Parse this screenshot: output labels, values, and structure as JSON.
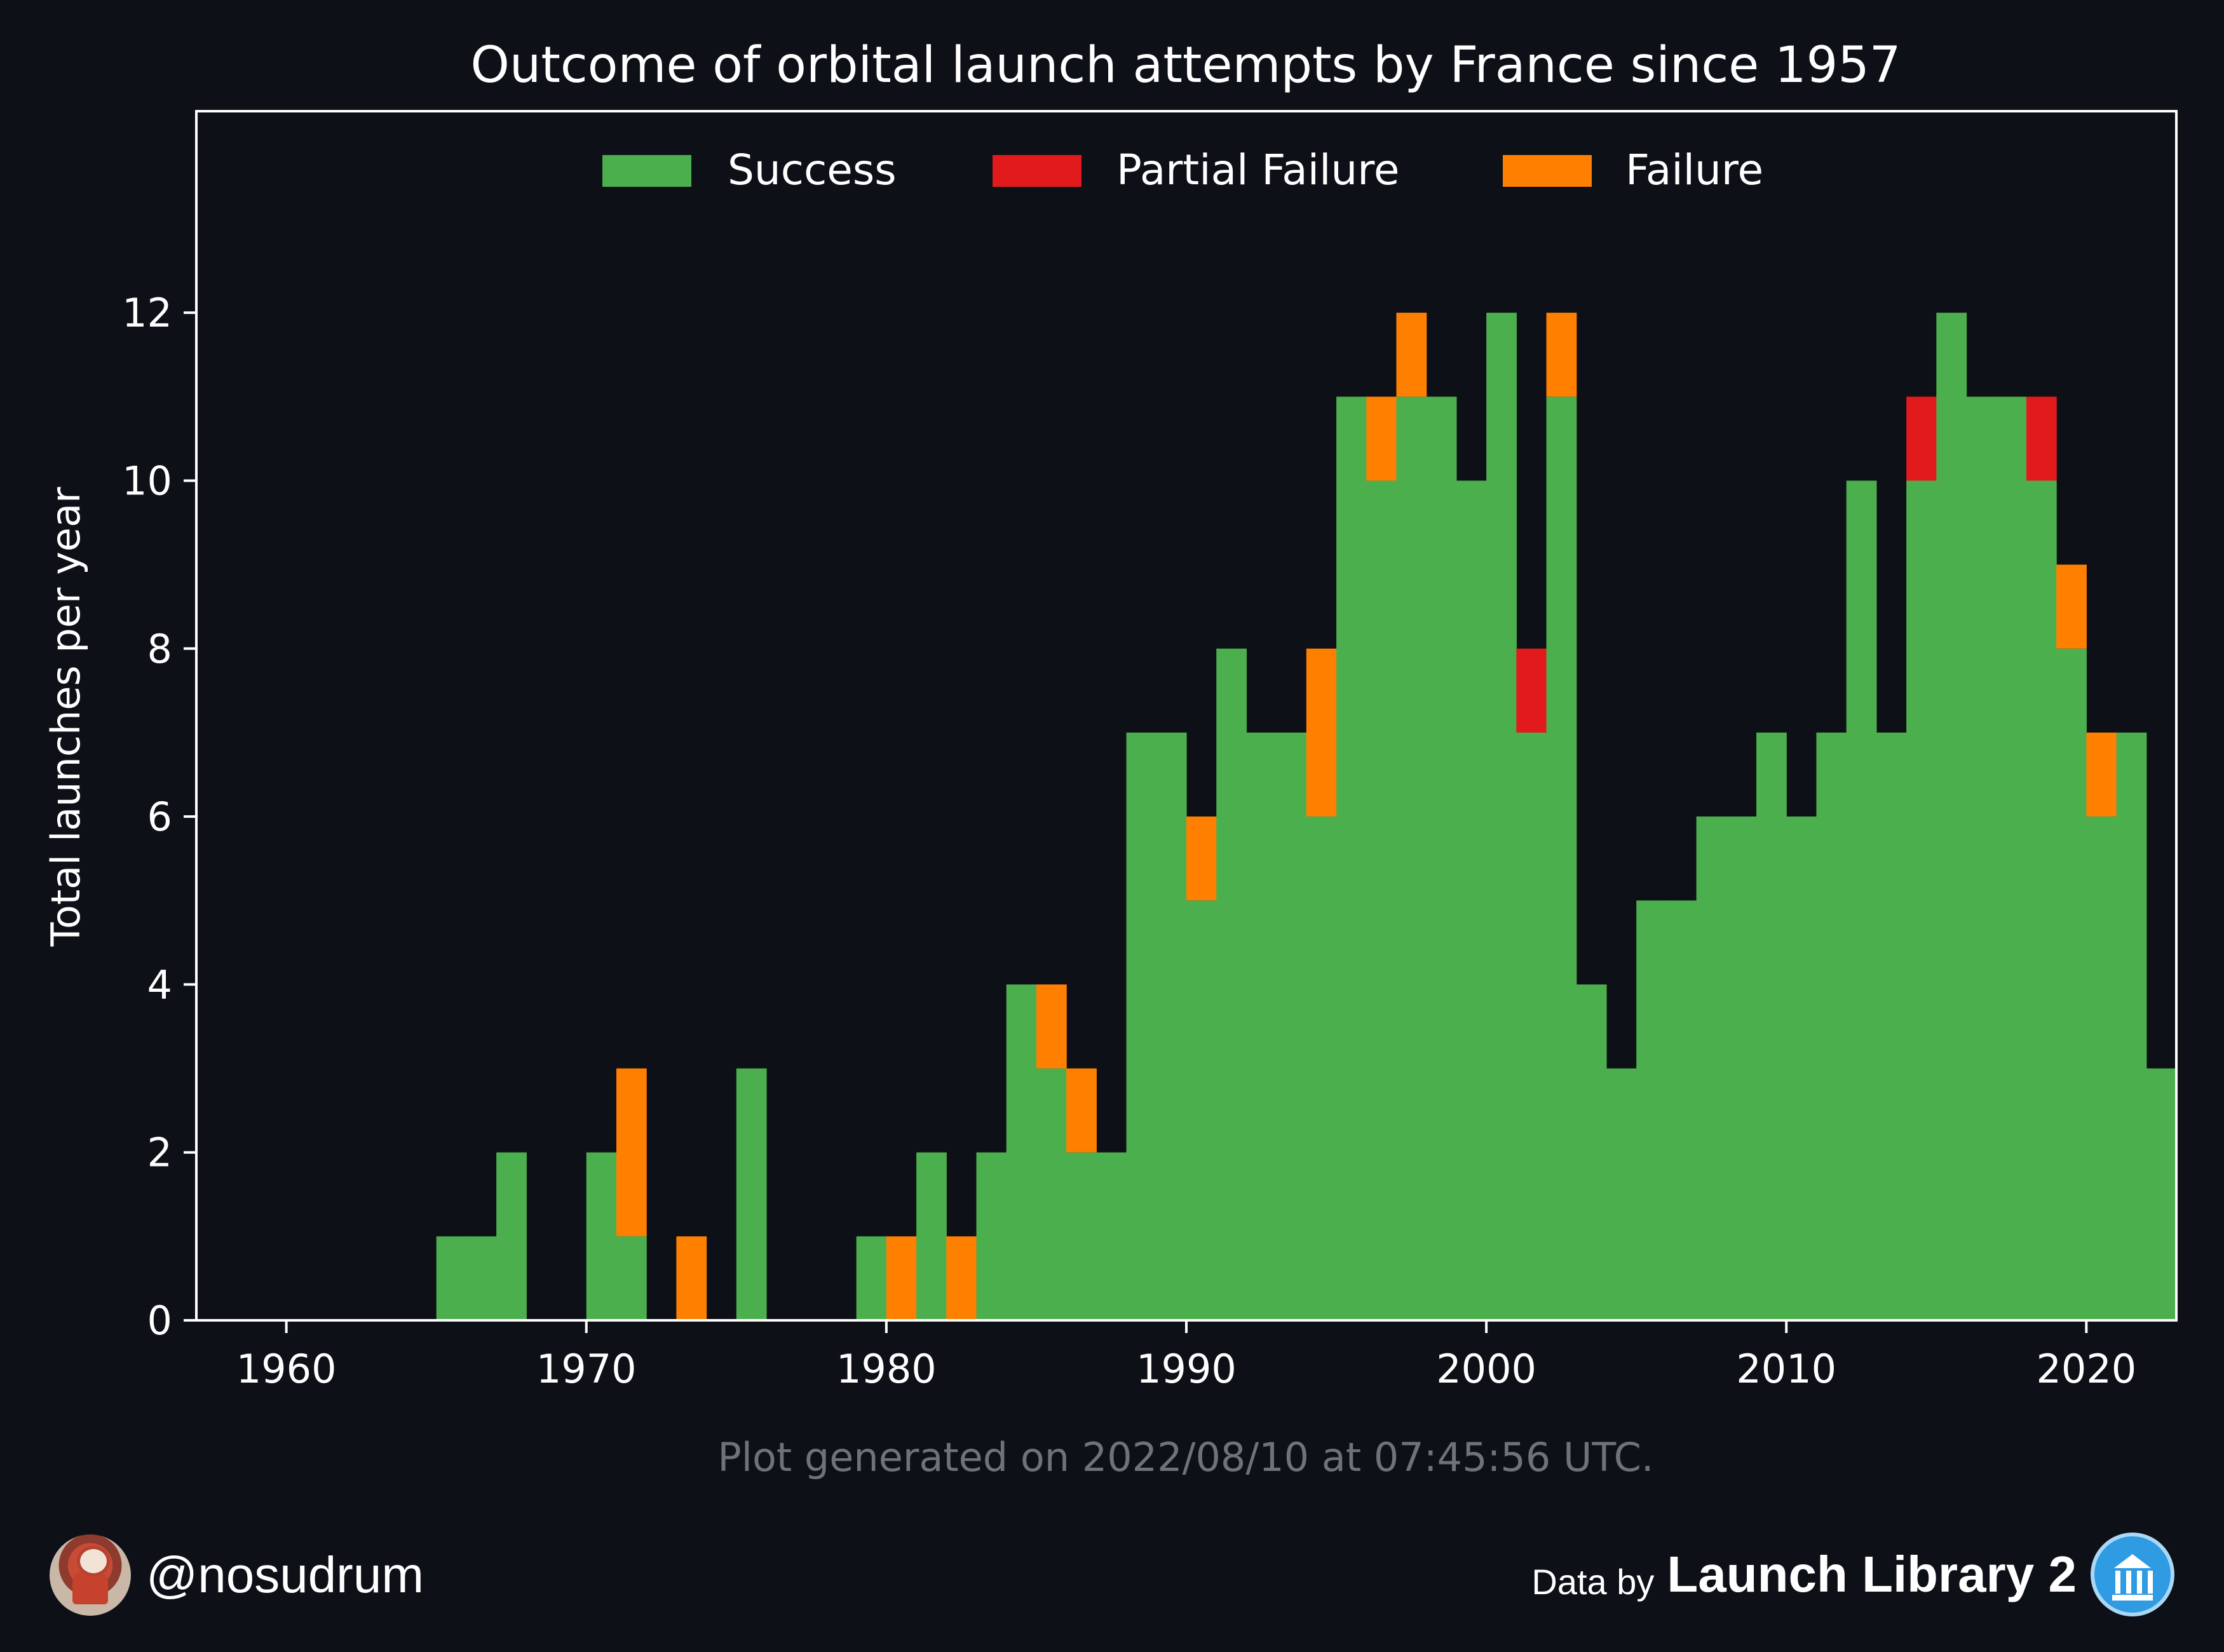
{
  "chart_data": {
    "type": "bar",
    "stacked": true,
    "title": "Outcome of orbital launch attempts by France since 1957",
    "xlabel": "",
    "ylabel": "Total launches per year",
    "xlim": [
      1957,
      2023
    ],
    "ylim": [
      0,
      14.4
    ],
    "x_ticks": [
      1960,
      1970,
      1980,
      1990,
      2000,
      2010,
      2020
    ],
    "y_ticks": [
      0,
      2,
      4,
      6,
      8,
      10,
      12
    ],
    "grid": false,
    "legend_position": "top-center",
    "categories": [
      1965,
      1966,
      1967,
      1970,
      1971,
      1973,
      1975,
      1979,
      1980,
      1981,
      1982,
      1983,
      1984,
      1985,
      1986,
      1987,
      1988,
      1989,
      1990,
      1991,
      1992,
      1993,
      1994,
      1995,
      1996,
      1997,
      1998,
      1999,
      2000,
      2001,
      2002,
      2003,
      2004,
      2005,
      2006,
      2007,
      2008,
      2009,
      2010,
      2011,
      2012,
      2013,
      2014,
      2015,
      2016,
      2017,
      2018,
      2019,
      2020,
      2021,
      2022
    ],
    "series": [
      {
        "name": "Success",
        "color": "#4caf4d",
        "values": [
          1,
          1,
          2,
          2,
          1,
          0,
          3,
          1,
          0,
          2,
          0,
          2,
          4,
          3,
          2,
          2,
          7,
          7,
          5,
          8,
          7,
          7,
          6,
          11,
          10,
          11,
          11,
          10,
          12,
          7,
          11,
          4,
          3,
          5,
          5,
          6,
          6,
          7,
          6,
          7,
          10,
          7,
          10,
          12,
          11,
          11,
          10,
          8,
          6,
          7,
          3
        ]
      },
      {
        "name": "Partial Failure",
        "color": "#e31a1c",
        "values": [
          0,
          0,
          0,
          0,
          0,
          0,
          0,
          0,
          0,
          0,
          0,
          0,
          0,
          0,
          0,
          0,
          0,
          0,
          0,
          0,
          0,
          0,
          0,
          0,
          0,
          0,
          0,
          0,
          0,
          1,
          0,
          0,
          0,
          0,
          0,
          0,
          0,
          0,
          0,
          0,
          0,
          0,
          1,
          0,
          0,
          0,
          1,
          0,
          0,
          0,
          0
        ]
      },
      {
        "name": "Failure",
        "color": "#ff7f00",
        "values": [
          0,
          0,
          0,
          0,
          2,
          1,
          0,
          0,
          1,
          0,
          1,
          0,
          0,
          1,
          1,
          0,
          0,
          0,
          1,
          0,
          0,
          0,
          2,
          0,
          1,
          1,
          0,
          0,
          0,
          0,
          1,
          0,
          0,
          0,
          0,
          0,
          0,
          0,
          0,
          0,
          0,
          0,
          0,
          0,
          0,
          0,
          0,
          1,
          1,
          0,
          0
        ]
      }
    ],
    "colors": {
      "background": "#0d1017",
      "axes": "#ffffff",
      "text": "#ffffff",
      "footnote": "#6f7278"
    }
  },
  "footnote": "Plot generated on 2022/08/10 at 07:45:56 UTC.",
  "footer": {
    "handle": "@nosudrum",
    "data_by": "Data by",
    "source": "Launch Library 2",
    "avatar_icon": "astronaut-avatar-icon",
    "source_icon": "museum-icon"
  }
}
